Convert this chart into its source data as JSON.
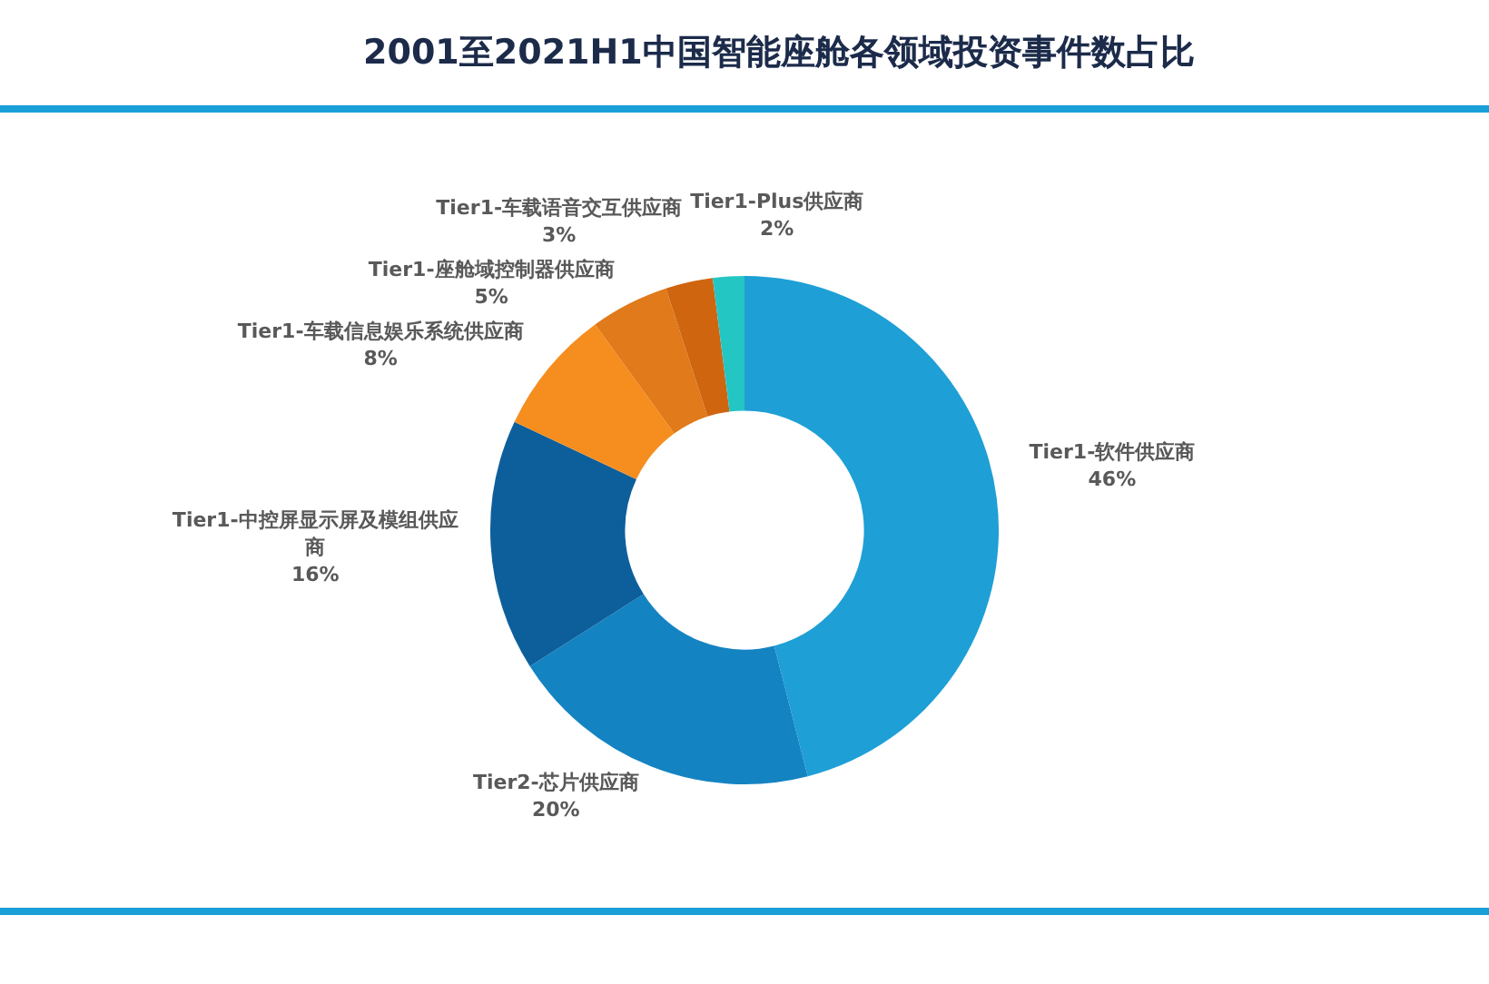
{
  "chart_data": {
    "type": "donut",
    "title": "2001至2021H1中国智能座舱各领域投资事件数占比",
    "categories": [
      "Tier1-软件供应商",
      "Tier2-芯片供应商",
      "Tier1-中控屏显示屏及模组供应商",
      "Tier1-车载信息娱乐系统供应商",
      "Tier1-座舱域控制器供应商",
      "Tier1-车载语音交互供应商",
      "Tier1-Plus供应商"
    ],
    "values": [
      46,
      20,
      16,
      8,
      5,
      3,
      2
    ],
    "colors": [
      "#1e9fd6",
      "#1483c2",
      "#0d5f9b",
      "#f68e1f",
      "#e07a1a",
      "#d06510",
      "#24c6c4"
    ],
    "value_labels": [
      "46%",
      "20%",
      "16%",
      "8%",
      "5%",
      "3%",
      "2%"
    ],
    "legend": false
  }
}
